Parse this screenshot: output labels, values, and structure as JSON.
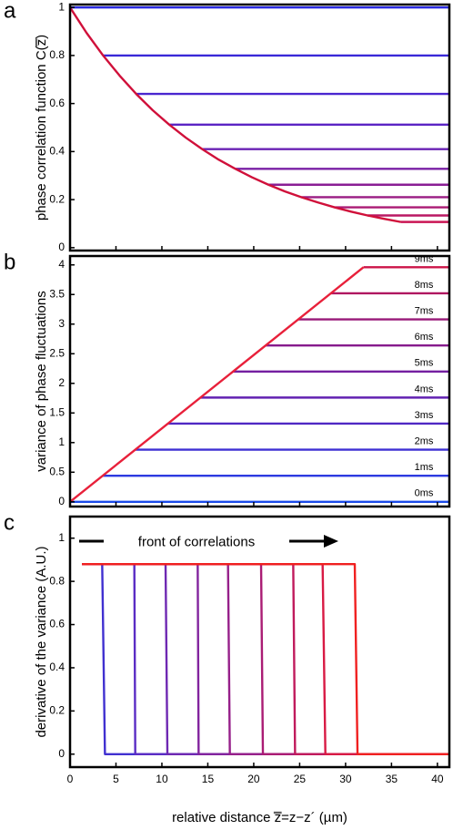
{
  "chart_data": [
    {
      "type": "line",
      "label": "a",
      "ylabel": "phase correlation function C(z̿)",
      "xlim": [
        0,
        41.3
      ],
      "xticks": [
        0,
        5,
        10,
        15,
        20,
        25,
        30,
        35,
        40
      ],
      "ylim": [
        -0.012,
        1.012
      ],
      "yticks": [
        0,
        {
          "value": 0.2,
          "label": "0.2"
        },
        {
          "value": 0.4,
          "label": "0.4"
        },
        {
          "value": 0.6,
          "label": "0.6"
        },
        {
          "value": 0.8,
          "label": "0.8"
        },
        1
      ],
      "series": [
        {
          "color": "#2a2ae0",
          "x": [
            0,
            41.3
          ],
          "values": [
            1,
            1
          ]
        },
        {
          "color": "#3a28d8",
          "x": [
            3.6,
            41.3
          ],
          "values": [
            0.8,
            0.8
          ]
        },
        {
          "color": "#4a26d0",
          "x": [
            7.2,
            41.3
          ],
          "values": [
            0.64,
            0.64
          ]
        },
        {
          "color": "#5a24c4",
          "x": [
            10.8,
            41.3
          ],
          "values": [
            0.512,
            0.512
          ]
        },
        {
          "color": "#6a22b4",
          "x": [
            14.4,
            41.3
          ],
          "values": [
            0.41,
            0.41
          ]
        },
        {
          "color": "#7a20a4",
          "x": [
            18,
            41.3
          ],
          "values": [
            0.328,
            0.328
          ]
        },
        {
          "color": "#8a1e94",
          "x": [
            21.6,
            41.3
          ],
          "values": [
            0.262,
            0.262
          ]
        },
        {
          "color": "#9a1c84",
          "x": [
            25.2,
            41.3
          ],
          "values": [
            0.21,
            0.21
          ]
        },
        {
          "color": "#aa1a74",
          "x": [
            28.8,
            41.3
          ],
          "values": [
            0.168,
            0.168
          ]
        },
        {
          "color": "#ba1864",
          "x": [
            32.4,
            41.3
          ],
          "values": [
            0.134,
            0.134
          ]
        },
        {
          "color": "#ca1654",
          "x": [
            36,
            41.3
          ],
          "values": [
            0.107,
            0.107
          ]
        },
        {
          "color": "#d0103a",
          "x": [
            0,
            1.8,
            3.6,
            5.4,
            7.2,
            9,
            10.8,
            12.6,
            14.4,
            16.2,
            18,
            19.8,
            21.6,
            23.4,
            25.2,
            27,
            28.8,
            30.6,
            32.4,
            34.2,
            36
          ],
          "values": [
            1,
            0.894,
            0.8,
            0.716,
            0.64,
            0.572,
            0.512,
            0.458,
            0.41,
            0.366,
            0.328,
            0.293,
            0.262,
            0.234,
            0.21,
            0.188,
            0.168,
            0.15,
            0.134,
            0.12,
            0.107
          ]
        }
      ]
    },
    {
      "type": "line",
      "label": "b",
      "ylabel": "variance of phase fluctuations",
      "xlim": [
        0,
        41.3
      ],
      "xticks": [
        0,
        5,
        10,
        15,
        20,
        25,
        30,
        35,
        40
      ],
      "ylim": [
        -0.08,
        4.15
      ],
      "yticks": [
        0,
        {
          "value": 0.5,
          "label": "0.5"
        },
        1,
        {
          "value": 1.5,
          "label": "1.5"
        },
        2,
        {
          "value": 2.5,
          "label": "2.5"
        },
        3,
        {
          "value": 3.5,
          "label": "3.5"
        },
        4
      ],
      "series": [
        {
          "name": "0ms",
          "color": "#1a4ae8",
          "x": [
            0,
            41.3
          ],
          "values": [
            0,
            0
          ]
        },
        {
          "name": "1ms",
          "color": "#2c3ae0",
          "x": [
            3.55,
            41.3
          ],
          "values": [
            0.44,
            0.44
          ]
        },
        {
          "name": "2ms",
          "color": "#3e30d4",
          "x": [
            7.1,
            41.3
          ],
          "values": [
            0.88,
            0.88
          ]
        },
        {
          "name": "3ms",
          "color": "#5028c4",
          "x": [
            10.65,
            41.3
          ],
          "values": [
            1.32,
            1.32
          ]
        },
        {
          "name": "4ms",
          "color": "#6222b2",
          "x": [
            14.2,
            41.3
          ],
          "values": [
            1.76,
            1.76
          ]
        },
        {
          "name": "5ms",
          "color": "#741ea0",
          "x": [
            17.75,
            41.3
          ],
          "values": [
            2.2,
            2.2
          ]
        },
        {
          "name": "6ms",
          "color": "#861a8c",
          "x": [
            21.3,
            41.3
          ],
          "values": [
            2.64,
            2.64
          ]
        },
        {
          "name": "7ms",
          "color": "#981878",
          "x": [
            24.85,
            41.3
          ],
          "values": [
            3.08,
            3.08
          ]
        },
        {
          "name": "8ms",
          "color": "#b01660",
          "x": [
            28.4,
            41.3
          ],
          "values": [
            3.52,
            3.52
          ]
        },
        {
          "name": "9ms",
          "color": "#cc1448",
          "x": [
            31.95,
            41.3
          ],
          "values": [
            3.96,
            3.96
          ]
        },
        {
          "color": "#e8203a",
          "x": [
            0,
            31.95
          ],
          "values": [
            0,
            3.96
          ]
        }
      ]
    },
    {
      "type": "line",
      "label": "c",
      "ylabel": "derivative of the variance (A.U.)",
      "xlabel": "relative distance z̿=z−z´ (µm)",
      "annotation": "front of correlations",
      "xlim": [
        0,
        41.3
      ],
      "xticks": [
        0,
        5,
        10,
        15,
        20,
        25,
        30,
        35,
        40
      ],
      "ylim": [
        -0.06,
        1.1
      ],
      "yticks": [
        0,
        {
          "value": 0.2,
          "label": "0.2"
        },
        {
          "value": 0.4,
          "label": "0.4"
        },
        {
          "value": 0.6,
          "label": "0.6"
        },
        {
          "value": 0.8,
          "label": "0.8"
        },
        1
      ],
      "series": [
        {
          "color": "#4030d0",
          "x": [
            1.3,
            3.5,
            3.8,
            41.3
          ],
          "values": [
            0.88,
            0.88,
            0,
            0
          ]
        },
        {
          "color": "#5a2cc4",
          "x": [
            1.3,
            7,
            7.1,
            41.3
          ],
          "values": [
            0.88,
            0.88,
            0,
            0
          ]
        },
        {
          "color": "#6e28b2",
          "x": [
            1.3,
            10.4,
            10.6,
            41.3
          ],
          "values": [
            0.88,
            0.88,
            0,
            0
          ]
        },
        {
          "color": "#82249e",
          "x": [
            1.3,
            13.9,
            14,
            41.3
          ],
          "values": [
            0.88,
            0.88,
            0,
            0
          ]
        },
        {
          "color": "#96208a",
          "x": [
            1.3,
            17.2,
            17.4,
            41.3
          ],
          "values": [
            0.88,
            0.88,
            0,
            0
          ]
        },
        {
          "color": "#aa1c74",
          "x": [
            1.3,
            20.8,
            21,
            41.3
          ],
          "values": [
            0.88,
            0.88,
            0,
            0
          ]
        },
        {
          "color": "#c01a5c",
          "x": [
            1.3,
            24.3,
            24.5,
            41.3
          ],
          "values": [
            0.88,
            0.88,
            0,
            0
          ]
        },
        {
          "color": "#d81a44",
          "x": [
            1.3,
            27.5,
            27.8,
            41.3
          ],
          "values": [
            0.88,
            0.88,
            0,
            0
          ]
        },
        {
          "color": "#f02020",
          "x": [
            1.3,
            31,
            31.3,
            41.3
          ],
          "values": [
            0.88,
            0.88,
            0,
            0
          ]
        }
      ]
    }
  ]
}
